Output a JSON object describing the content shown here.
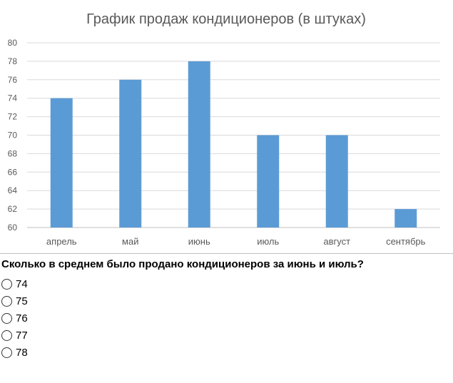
{
  "chart_data": {
    "type": "bar",
    "title": "График продаж кондиционеров  (в штуках)",
    "categories": [
      "апрель",
      "май",
      "июнь",
      "июль",
      "август",
      "сентябрь"
    ],
    "values": [
      74,
      76,
      78,
      70,
      70,
      62
    ],
    "ylim": [
      60,
      80
    ],
    "yticks": [
      60,
      62,
      64,
      66,
      68,
      70,
      72,
      74,
      76,
      78,
      80
    ],
    "xlabel": "",
    "ylabel": "",
    "grid": true,
    "bar_color": "#5b9bd5"
  },
  "quiz": {
    "question": "Сколько в среднем было продано кондиционеров за июнь и июль?",
    "options": [
      "74",
      "75",
      "76",
      "77",
      "78"
    ]
  }
}
